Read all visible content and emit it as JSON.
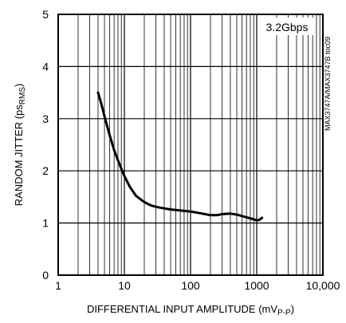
{
  "chart_data": {
    "type": "line",
    "title": "",
    "xlabel": "DIFFERENTIAL INPUT AMPLITUDE (mV",
    "xlabel_sub": "P-P",
    "xlabel_end": ")",
    "ylabel": "RANDOM JITTER (ps",
    "ylabel_sub": "RMS",
    "ylabel_end": ")",
    "x_scale": "log",
    "xlim": [
      1,
      10000
    ],
    "ylim": [
      0,
      5
    ],
    "x_tick_values": [
      1,
      10,
      100,
      1000,
      10000
    ],
    "x_tick_labels": [
      "1",
      "10",
      "100",
      "1000",
      "10,000"
    ],
    "y_tick_values": [
      0,
      1,
      2,
      3,
      4,
      5
    ],
    "y_tick_labels": [
      "0",
      "1",
      "2",
      "3",
      "4",
      "5"
    ],
    "grid": true,
    "annotation": "3.2Gbps",
    "side_label": "MAX3747A/MAX3747B toc09",
    "series": [
      {
        "x": [
          4,
          4.5,
          5,
          6,
          7,
          8,
          9,
          10,
          12,
          15,
          20,
          25,
          30,
          40,
          50,
          70,
          100,
          150,
          200,
          250,
          300,
          400,
          500,
          700,
          900,
          1000,
          1100,
          1200
        ],
        "y": [
          3.5,
          3.28,
          3.05,
          2.68,
          2.4,
          2.2,
          2.04,
          1.9,
          1.7,
          1.52,
          1.4,
          1.34,
          1.31,
          1.28,
          1.26,
          1.24,
          1.22,
          1.18,
          1.15,
          1.15,
          1.17,
          1.18,
          1.16,
          1.11,
          1.07,
          1.05,
          1.06,
          1.1
        ]
      }
    ]
  }
}
